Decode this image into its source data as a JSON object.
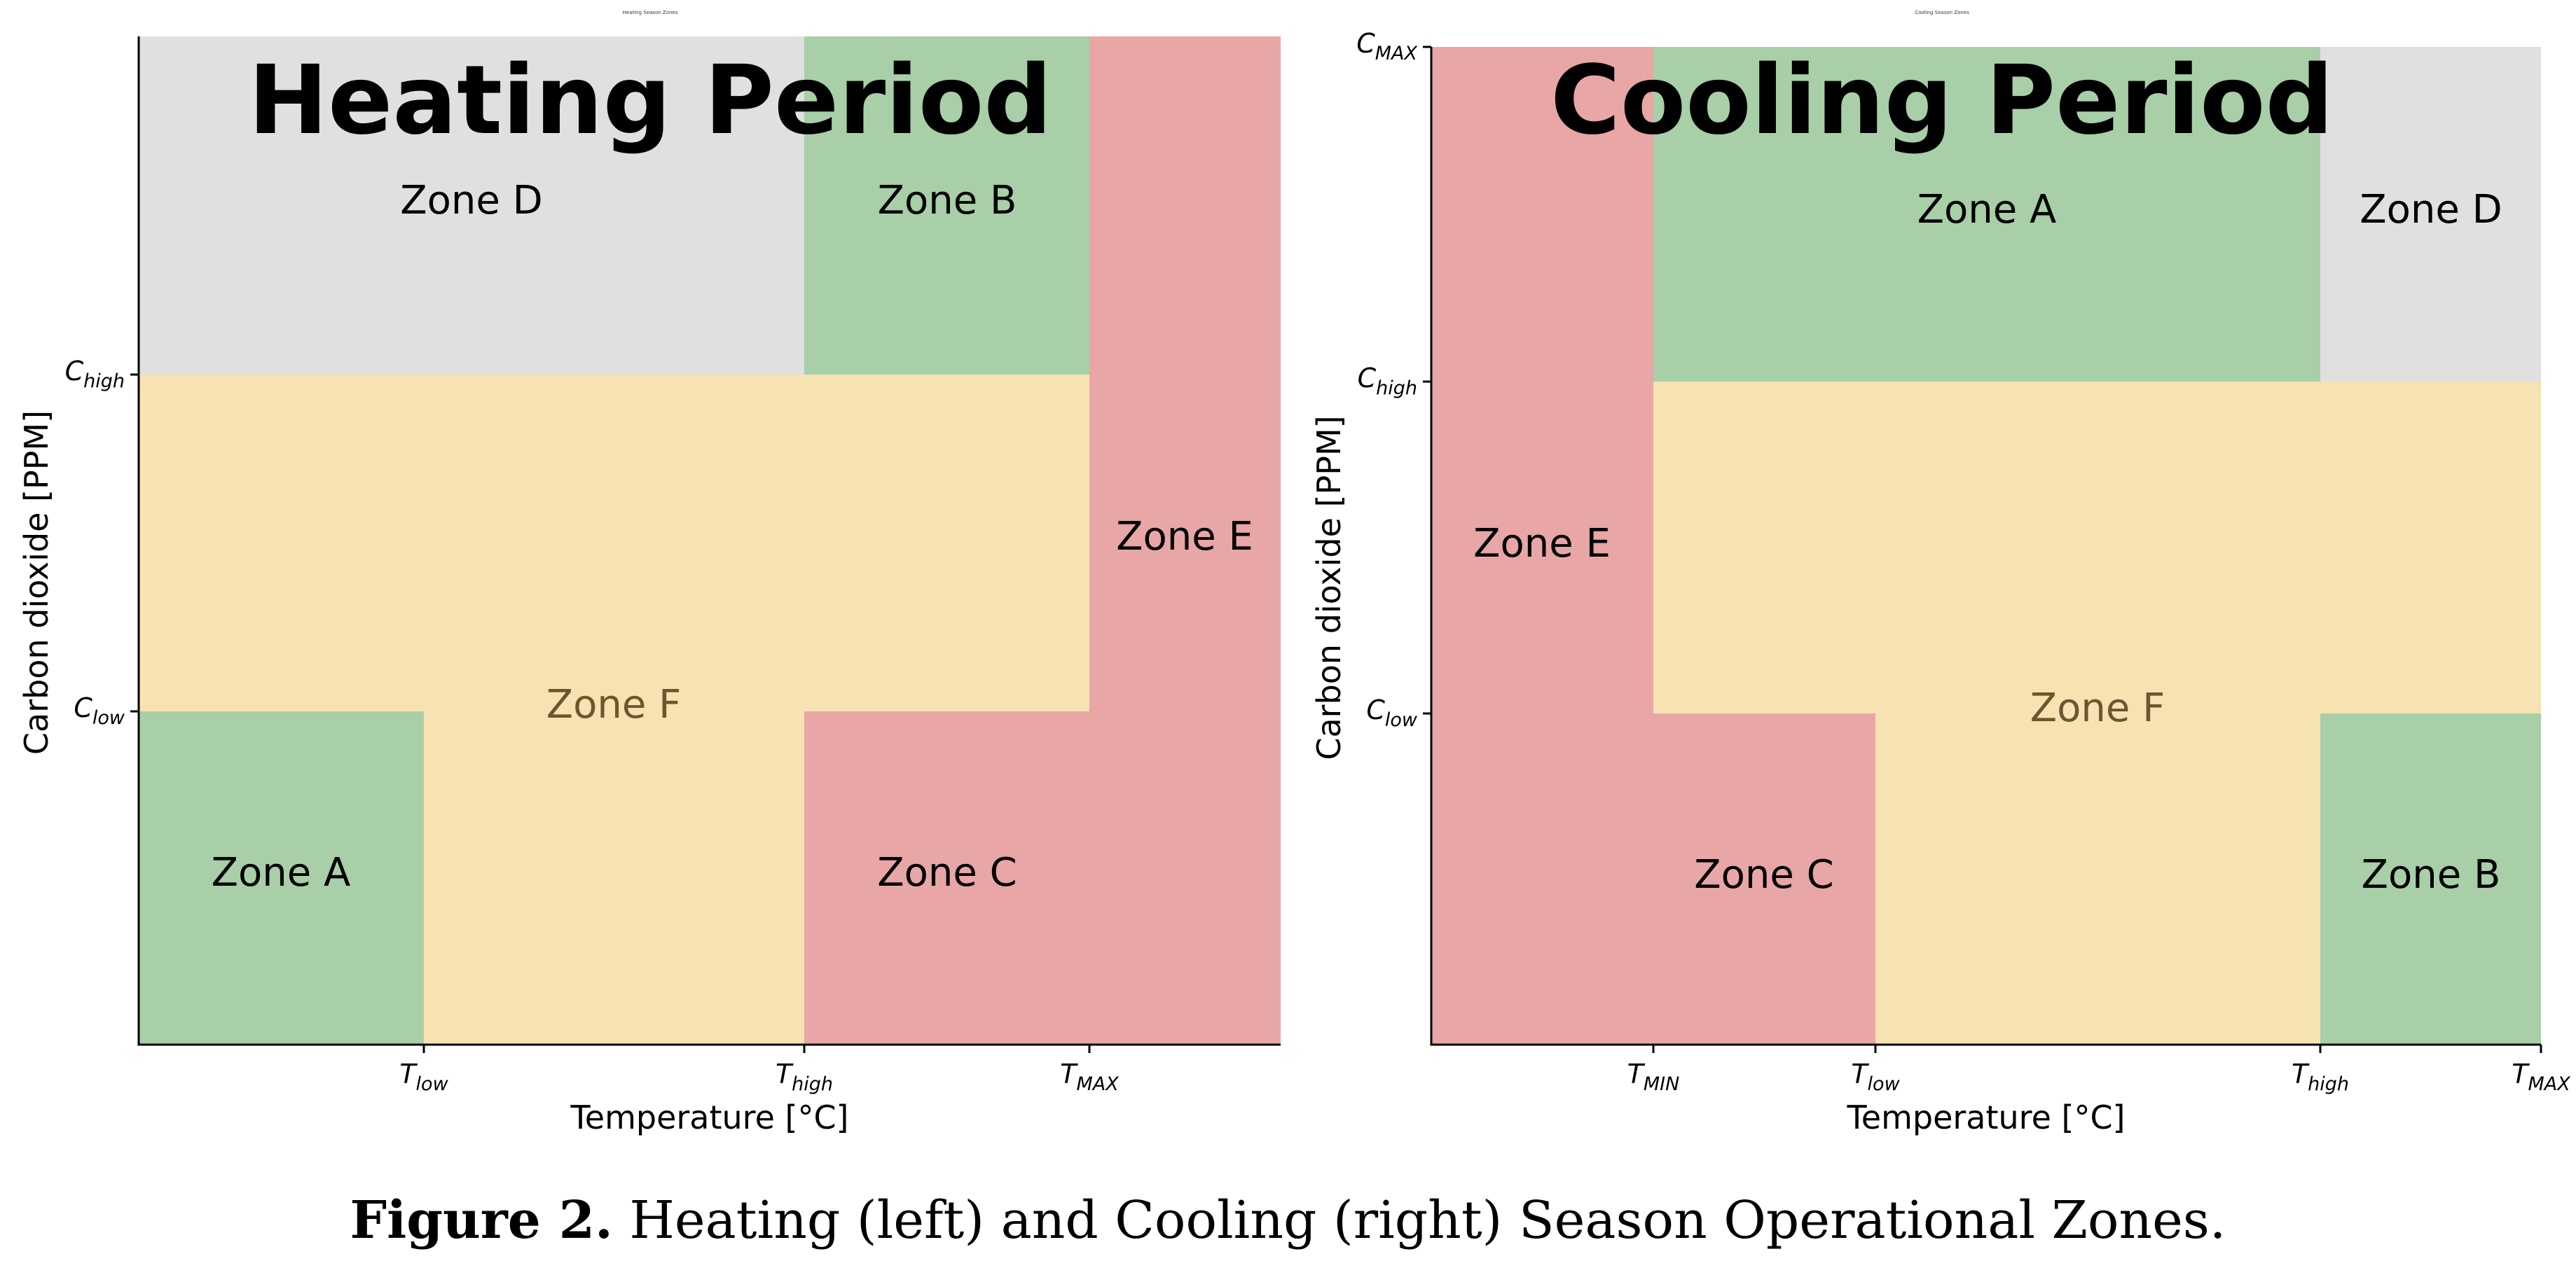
{
  "colors": {
    "green": "#a8cfa8",
    "gray": "#e0e0e0",
    "yellow": "#f7e2b2",
    "red": "#e8a6a6",
    "zone_f_text": "#6b5630"
  },
  "panels": [
    {
      "id": "heating",
      "small_title": "Heating Season Zones",
      "big_title": "Heating Period",
      "xlabel": "Temperature [°C]",
      "ylabel": "Carbon dioxide [PPM]",
      "x_ticks": [
        {
          "main": "T",
          "sub": "low"
        },
        {
          "main": "T",
          "sub": "high"
        },
        {
          "main": "T",
          "sub": "MAX"
        }
      ],
      "y_ticks": [
        {
          "main": "C",
          "sub": "high"
        },
        {
          "main": "C",
          "sub": "low"
        }
      ],
      "zones": [
        {
          "label": "Zone D",
          "color": "gray"
        },
        {
          "label": "Zone B",
          "color": "green"
        },
        {
          "label": "Zone E",
          "color": "red"
        },
        {
          "label": "Zone F",
          "color": "yellow"
        },
        {
          "label": "Zone A",
          "color": "green"
        },
        {
          "label": "Zone C",
          "color": "red"
        }
      ]
    },
    {
      "id": "cooling",
      "small_title": "Cooling Season Zones",
      "big_title": "Cooling Period",
      "xlabel": "Temperature [°C]",
      "ylabel": "Carbon dioxide [PPM]",
      "x_ticks": [
        {
          "main": "T",
          "sub": "MIN"
        },
        {
          "main": "T",
          "sub": "low"
        },
        {
          "main": "T",
          "sub": "high"
        },
        {
          "main": "T",
          "sub": "MAX"
        }
      ],
      "y_ticks": [
        {
          "main": "C",
          "sub": "MAX"
        },
        {
          "main": "C",
          "sub": "high"
        },
        {
          "main": "C",
          "sub": "low"
        }
      ],
      "zones": [
        {
          "label": "Zone E",
          "color": "red"
        },
        {
          "label": "Zone A",
          "color": "green"
        },
        {
          "label": "Zone D",
          "color": "gray"
        },
        {
          "label": "Zone F",
          "color": "yellow"
        },
        {
          "label": "Zone C",
          "color": "red"
        },
        {
          "label": "Zone B",
          "color": "green"
        }
      ]
    }
  ],
  "caption": {
    "bold": "Figure 2.",
    "text": " Heating (left) and Cooling (right) Season Operational Zones."
  }
}
